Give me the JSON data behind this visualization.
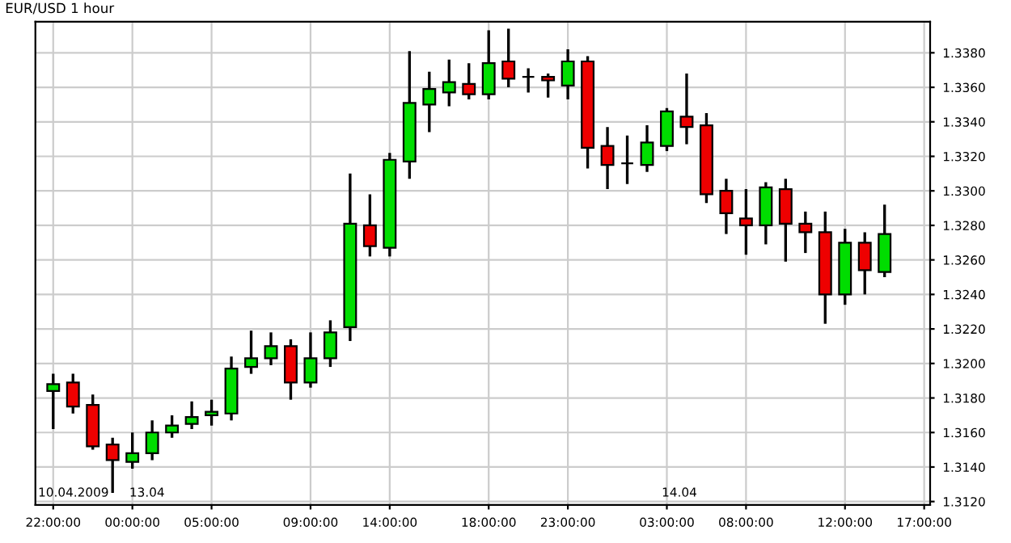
{
  "chart_data": {
    "type": "candlestick",
    "title": "EUR/USD 1 hour",
    "categories": [
      "22:00:00",
      null,
      null,
      null,
      "00:00:00",
      null,
      null,
      null,
      "05:00:00",
      null,
      null,
      null,
      null,
      "09:00:00",
      null,
      null,
      null,
      "14:00:00",
      null,
      null,
      null,
      null,
      "18:00:00",
      null,
      null,
      null,
      "23:00:00",
      null,
      null,
      null,
      null,
      "03:00:00",
      null,
      null,
      null,
      "08:00:00",
      null,
      null,
      null,
      null,
      "12:00:00",
      null,
      null,
      null,
      "17:00:00"
    ],
    "ohlc": [
      [
        1.3184,
        1.3194,
        1.3162,
        1.3188
      ],
      [
        1.3189,
        1.3194,
        1.3171,
        1.3175
      ],
      [
        1.3176,
        1.3182,
        1.315,
        1.3152
      ],
      [
        1.3153,
        1.3157,
        1.3125,
        1.3144
      ],
      [
        1.3143,
        1.316,
        1.3139,
        1.3148
      ],
      [
        1.3148,
        1.3167,
        1.3144,
        1.316
      ],
      [
        1.316,
        1.317,
        1.3157,
        1.3164
      ],
      [
        1.3165,
        1.3178,
        1.3162,
        1.3169
      ],
      [
        1.317,
        1.3179,
        1.3164,
        1.3172
      ],
      [
        1.3171,
        1.3204,
        1.3167,
        1.3197
      ],
      [
        1.3198,
        1.3219,
        1.3194,
        1.3203
      ],
      [
        1.3203,
        1.3218,
        1.3199,
        1.321
      ],
      [
        1.321,
        1.3214,
        1.3179,
        1.3189
      ],
      [
        1.3189,
        1.3218,
        1.3186,
        1.3203
      ],
      [
        1.3203,
        1.3225,
        1.3198,
        1.3218
      ],
      [
        1.3221,
        1.331,
        1.3213,
        1.3281
      ],
      [
        1.328,
        1.3298,
        1.3262,
        1.3268
      ],
      [
        1.3267,
        1.3322,
        1.3262,
        1.3318
      ],
      [
        1.3317,
        1.3381,
        1.3307,
        1.3351
      ],
      [
        1.335,
        1.3369,
        1.3334,
        1.3359
      ],
      [
        1.3357,
        1.3376,
        1.3349,
        1.3363
      ],
      [
        1.3362,
        1.3374,
        1.3353,
        1.3356
      ],
      [
        1.3356,
        1.3393,
        1.3353,
        1.3374
      ],
      [
        1.3375,
        1.3394,
        1.336,
        1.3365
      ],
      [
        1.3366,
        1.3371,
        1.3357,
        1.3366
      ],
      [
        1.3366,
        1.3368,
        1.3354,
        1.3364
      ],
      [
        1.3361,
        1.3382,
        1.3353,
        1.3375
      ],
      [
        1.3375,
        1.3378,
        1.3313,
        1.3325
      ],
      [
        1.3326,
        1.3337,
        1.3301,
        1.3315
      ],
      [
        1.3316,
        1.3332,
        1.3304,
        1.3316
      ],
      [
        1.3315,
        1.3338,
        1.3311,
        1.3328
      ],
      [
        1.3326,
        1.3348,
        1.3323,
        1.3346
      ],
      [
        1.3343,
        1.3368,
        1.3327,
        1.3337
      ],
      [
        1.3338,
        1.3345,
        1.3293,
        1.3298
      ],
      [
        1.33,
        1.3307,
        1.3275,
        1.3287
      ],
      [
        1.3284,
        1.3301,
        1.3263,
        1.328
      ],
      [
        1.328,
        1.3305,
        1.3269,
        1.3302
      ],
      [
        1.3301,
        1.3307,
        1.3259,
        1.3281
      ],
      [
        1.3281,
        1.3288,
        1.3264,
        1.3276
      ],
      [
        1.3276,
        1.3288,
        1.3223,
        1.324
      ],
      [
        1.324,
        1.3278,
        1.3234,
        1.327
      ],
      [
        1.327,
        1.3276,
        1.324,
        1.3254
      ],
      [
        1.3253,
        1.3292,
        1.325,
        1.3275
      ],
      null,
      null
    ],
    "colors": [
      "#00dd00",
      "#ee0000",
      "#ee0000",
      "#ee0000",
      "#00dd00",
      "#00dd00",
      "#00dd00",
      "#00dd00",
      "#00dd00",
      "#00dd00",
      "#00dd00",
      "#00dd00",
      "#ee0000",
      "#00dd00",
      "#00dd00",
      "#00dd00",
      "#ee0000",
      "#00dd00",
      "#00dd00",
      "#00dd00",
      "#00dd00",
      "#ee0000",
      "#00dd00",
      "#ee0000",
      "#000000",
      "#ee0000",
      "#00dd00",
      "#ee0000",
      "#ee0000",
      "#000000",
      "#00dd00",
      "#00dd00",
      "#ee0000",
      "#ee0000",
      "#ee0000",
      "#ee0000",
      "#00dd00",
      "#ee0000",
      "#ee0000",
      "#ee0000",
      "#00dd00",
      "#ee0000",
      "#00dd00",
      null,
      null
    ],
    "ylim": [
      1.3118,
      1.3398
    ],
    "yticks": [
      {
        "value": 1.312,
        "label": "1.3120"
      },
      {
        "value": 1.314,
        "label": "1.3140"
      },
      {
        "value": 1.316,
        "label": "1.3160"
      },
      {
        "value": 1.318,
        "label": "1.3180"
      },
      {
        "value": 1.32,
        "label": "1.3200"
      },
      {
        "value": 1.322,
        "label": "1.3220"
      },
      {
        "value": 1.324,
        "label": "1.3240"
      },
      {
        "value": 1.326,
        "label": "1.3260"
      },
      {
        "value": 1.328,
        "label": "1.3280"
      },
      {
        "value": 1.33,
        "label": "1.3300"
      },
      {
        "value": 1.332,
        "label": "1.3320"
      },
      {
        "value": 1.334,
        "label": "1.3340"
      },
      {
        "value": 1.336,
        "label": "1.3360"
      },
      {
        "value": 1.338,
        "label": "1.3380"
      }
    ],
    "grid": true,
    "annotations": [
      "10.04.2009",
      "13.04",
      "14.04"
    ]
  }
}
